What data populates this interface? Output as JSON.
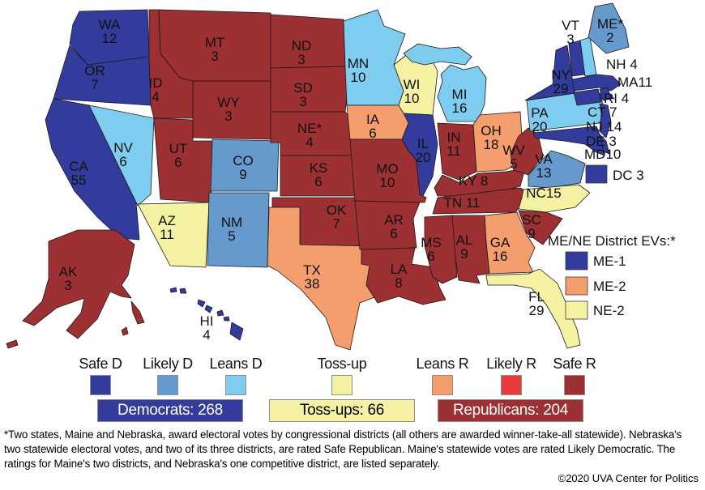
{
  "colors": {
    "safe-d": "#333c9c",
    "likely-d": "#6699cc",
    "leans-d": "#7ecdf0",
    "toss-up": "#f5f1a2",
    "leans-r": "#f49d6d",
    "likely-r": "#e8393b",
    "safe-r": "#9c3033"
  },
  "map": {
    "states": [
      {
        "id": "WA",
        "lines": [
          "WA",
          "12"
        ],
        "rating": "safe-d"
      },
      {
        "id": "OR",
        "lines": [
          "OR",
          "7"
        ],
        "rating": "safe-d"
      },
      {
        "id": "CA",
        "lines": [
          "CA",
          "55"
        ],
        "rating": "safe-d"
      },
      {
        "id": "NV",
        "lines": [
          "NV",
          "6"
        ],
        "rating": "leans-d"
      },
      {
        "id": "ID",
        "lines": [
          "ID",
          "4"
        ],
        "rating": "safe-r"
      },
      {
        "id": "MT",
        "lines": [
          "MT",
          "3"
        ],
        "rating": "safe-r"
      },
      {
        "id": "WY",
        "lines": [
          "WY",
          "3"
        ],
        "rating": "safe-r"
      },
      {
        "id": "UT",
        "lines": [
          "UT",
          "6"
        ],
        "rating": "safe-r"
      },
      {
        "id": "CO",
        "lines": [
          "CO",
          "9"
        ],
        "rating": "likely-d"
      },
      {
        "id": "AZ",
        "lines": [
          "AZ",
          "11"
        ],
        "rating": "toss-up"
      },
      {
        "id": "NM",
        "lines": [
          "NM",
          "5"
        ],
        "rating": "likely-d"
      },
      {
        "id": "AK",
        "lines": [
          "AK",
          "3"
        ],
        "rating": "safe-r"
      },
      {
        "id": "HI",
        "lines": [
          "HI",
          "4"
        ],
        "rating": "safe-d"
      },
      {
        "id": "ND",
        "lines": [
          "ND",
          "3"
        ],
        "rating": "safe-r"
      },
      {
        "id": "SD",
        "lines": [
          "SD",
          "3"
        ],
        "rating": "safe-r"
      },
      {
        "id": "NE",
        "lines": [
          "NE*",
          "4"
        ],
        "rating": "safe-r"
      },
      {
        "id": "KS",
        "lines": [
          "KS",
          "6"
        ],
        "rating": "safe-r"
      },
      {
        "id": "OK",
        "lines": [
          "OK",
          "7"
        ],
        "rating": "safe-r"
      },
      {
        "id": "TX",
        "lines": [
          "TX",
          "38"
        ],
        "rating": "leans-r"
      },
      {
        "id": "MN",
        "lines": [
          "MN",
          "10"
        ],
        "rating": "leans-d"
      },
      {
        "id": "IA",
        "lines": [
          "IA",
          "6"
        ],
        "rating": "leans-r"
      },
      {
        "id": "MO",
        "lines": [
          "MO",
          "10"
        ],
        "rating": "safe-r"
      },
      {
        "id": "AR",
        "lines": [
          "AR",
          "6"
        ],
        "rating": "safe-r"
      },
      {
        "id": "LA",
        "lines": [
          "LA",
          "8"
        ],
        "rating": "safe-r"
      },
      {
        "id": "WI",
        "lines": [
          "WI",
          "10"
        ],
        "rating": "toss-up"
      },
      {
        "id": "IL",
        "lines": [
          "IL",
          "20"
        ],
        "rating": "safe-d"
      },
      {
        "id": "MI",
        "lines": [
          "MI",
          "16"
        ],
        "rating": "leans-d"
      },
      {
        "id": "IN",
        "lines": [
          "IN",
          "11"
        ],
        "rating": "safe-r"
      },
      {
        "id": "OH",
        "lines": [
          "OH",
          "18"
        ],
        "rating": "leans-r"
      },
      {
        "id": "KY",
        "lines": [
          "KY 8"
        ],
        "rating": "safe-r"
      },
      {
        "id": "TN",
        "lines": [
          "TN 11"
        ],
        "rating": "safe-r"
      },
      {
        "id": "WV",
        "lines": [
          "WV",
          "5"
        ],
        "rating": "safe-r"
      },
      {
        "id": "VA",
        "lines": [
          "VA",
          "13"
        ],
        "rating": "likely-d"
      },
      {
        "id": "NC",
        "lines": [
          "NC15"
        ],
        "rating": "toss-up"
      },
      {
        "id": "SC",
        "lines": [
          "SC",
          "9"
        ],
        "rating": "safe-r"
      },
      {
        "id": "GA",
        "lines": [
          "GA",
          "16"
        ],
        "rating": "leans-r"
      },
      {
        "id": "AL",
        "lines": [
          "AL",
          "9"
        ],
        "rating": "safe-r"
      },
      {
        "id": "MS",
        "lines": [
          "MS",
          "6"
        ],
        "rating": "safe-r"
      },
      {
        "id": "FL",
        "lines": [
          "FL",
          "29"
        ],
        "rating": "toss-up"
      },
      {
        "id": "PA",
        "lines": [
          "PA",
          "20"
        ],
        "rating": "leans-d"
      },
      {
        "id": "NY",
        "lines": [
          "NY",
          "29"
        ],
        "rating": "safe-d"
      },
      {
        "id": "VT",
        "lines": [
          "VT",
          "3"
        ],
        "rating": "safe-d"
      },
      {
        "id": "NH",
        "lines": [
          "NH 4"
        ],
        "rating": "leans-d"
      },
      {
        "id": "ME",
        "lines": [
          "ME*",
          "2"
        ],
        "rating": "likely-d"
      },
      {
        "id": "MA",
        "lines": [
          "MA11"
        ],
        "rating": "safe-d"
      },
      {
        "id": "RI",
        "lines": [
          "RI 4"
        ],
        "rating": "safe-d"
      },
      {
        "id": "CT",
        "lines": [
          "CT 7"
        ],
        "rating": "safe-d"
      },
      {
        "id": "NJ",
        "lines": [
          "NJ 14"
        ],
        "rating": "safe-d"
      },
      {
        "id": "DE",
        "lines": [
          "DE 3"
        ],
        "rating": "safe-d"
      },
      {
        "id": "MD",
        "lines": [
          "MD10"
        ],
        "rating": "safe-d"
      }
    ],
    "dc": {
      "label": "DC 3",
      "rating": "safe-d"
    },
    "district_legend": {
      "title": "ME/NE District EVs:*",
      "items": [
        {
          "label": "ME-1",
          "rating": "safe-d"
        },
        {
          "label": "ME-2",
          "rating": "leans-r"
        },
        {
          "label": "NE-2",
          "rating": "toss-up"
        }
      ]
    }
  },
  "legend": {
    "items": [
      {
        "label": "Safe D",
        "rating": "safe-d"
      },
      {
        "label": "Likely D",
        "rating": "likely-d"
      },
      {
        "label": "Leans D",
        "rating": "leans-d"
      },
      {
        "label": "Toss-up",
        "rating": "toss-up"
      },
      {
        "label": "Leans R",
        "rating": "leans-r"
      },
      {
        "label": "Likely R",
        "rating": "likely-r"
      },
      {
        "label": "Safe R",
        "rating": "safe-r"
      }
    ]
  },
  "totals": [
    {
      "label": "Democrats: 268",
      "rating": "safe-d",
      "text_color": "#ffffff"
    },
    {
      "label": "Toss-ups: 66",
      "rating": "toss-up",
      "text_color": "#000000"
    },
    {
      "label": "Republicans: 204",
      "rating": "safe-r",
      "text_color": "#ffffff"
    }
  ],
  "footnote": "*Two states, Maine and Nebraska, award electoral votes by congressional districts (all others are awarded winner-take-all statewide). Nebraska's two statewide electoral votes, and two of its three districts, are rated Safe Republican. Maine's statewide votes are rated Likely Democratic. The ratings for Maine's two districts, and Nebraska's one competitive district, are listed separately.",
  "credit": "©2020 UVA Center for Politics"
}
